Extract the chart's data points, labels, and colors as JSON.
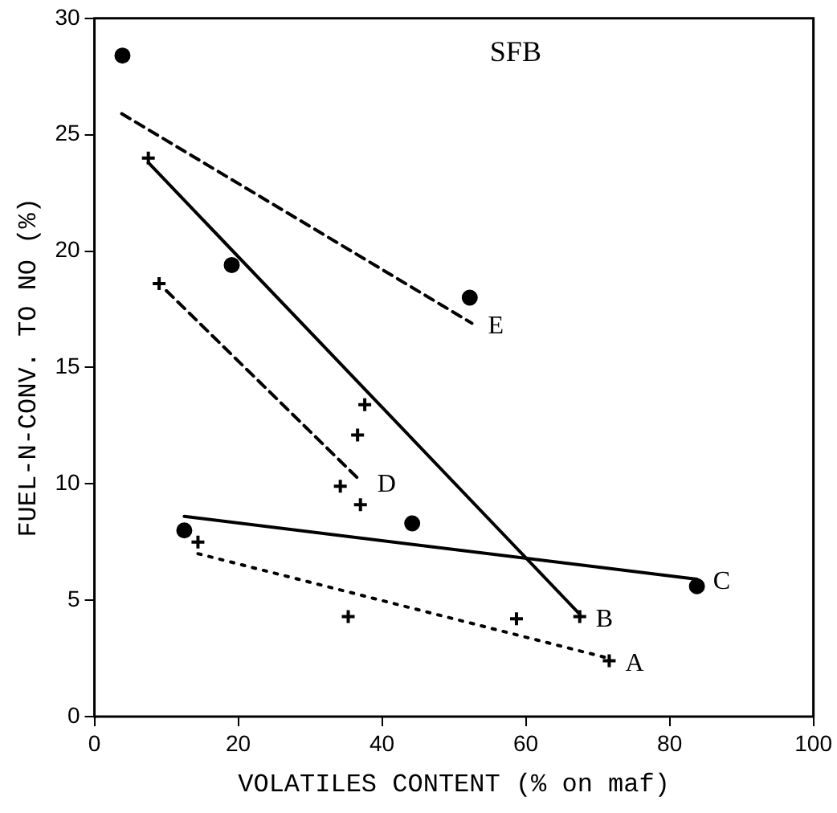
{
  "chart_data": {
    "type": "scatter",
    "xlabel": "VOLATILES CONTENT (% on maf)",
    "ylabel": "FUEL-N-CONV. TO NO (%)",
    "xlim": [
      0,
      100
    ],
    "xticks": [
      0,
      20,
      40,
      60,
      80,
      100
    ],
    "ylim": [
      0,
      30
    ],
    "yticks": [
      0,
      5,
      10,
      15,
      20,
      25,
      30
    ],
    "grid": false,
    "legend": false,
    "annotations": [
      "SFB",
      {
        "text": "A",
        "x": 71.6,
        "y": 2.4
      },
      {
        "text": "B",
        "x": 67.5,
        "y": 4.3
      },
      {
        "text": "C",
        "x": 83.8,
        "y": 5.9
      },
      {
        "text": "D",
        "x": 37.1,
        "y": 10.1
      },
      {
        "text": "E",
        "x": 52.5,
        "y": 16.9
      }
    ],
    "series": [
      {
        "marker": "cross",
        "color": "#000000",
        "x": [
          14.4,
          35.3,
          58.7,
          71.6
        ],
        "values": [
          7.5,
          4.3,
          4.2,
          2.4
        ]
      },
      {
        "type": "line",
        "marker": "none",
        "line_style": "dotted",
        "color": "#000000",
        "x": [
          14.4,
          71.6
        ],
        "values": [
          7.0,
          2.5
        ]
      },
      {
        "marker": "cross",
        "color": "#000000",
        "x": [
          7.5,
          37.6,
          67.5
        ],
        "values": [
          24.0,
          13.4,
          4.3
        ]
      },
      {
        "type": "line",
        "marker": "none",
        "line_style": "solid",
        "color": "#000000",
        "x": [
          7.5,
          67.5
        ],
        "values": [
          23.8,
          4.4
        ]
      },
      {
        "marker": "circle",
        "color": "#000000",
        "x": [
          12.5,
          44.2,
          83.8
        ],
        "values": [
          8.0,
          8.3,
          5.6
        ]
      },
      {
        "type": "line",
        "marker": "none",
        "line_style": "solid",
        "color": "#000000",
        "x": [
          12.5,
          83.8
        ],
        "values": [
          8.6,
          5.9
        ]
      },
      {
        "marker": "cross",
        "color": "#000000",
        "x": [
          9.0,
          36.6,
          34.2,
          37.0
        ],
        "values": [
          18.6,
          12.1,
          9.9,
          9.1
        ]
      },
      {
        "type": "line",
        "marker": "none",
        "line_style": "dashed",
        "color": "#000000",
        "x": [
          10.0,
          37.1
        ],
        "values": [
          18.3,
          10.1
        ]
      },
      {
        "marker": "circle",
        "color": "#000000",
        "x": [
          3.9,
          19.1,
          52.2
        ],
        "values": [
          28.4,
          19.4,
          18.0
        ]
      },
      {
        "type": "line",
        "marker": "none",
        "line_style": "dashed",
        "color": "#000000",
        "x": [
          3.8,
          52.5
        ],
        "values": [
          25.9,
          16.9
        ]
      }
    ]
  }
}
